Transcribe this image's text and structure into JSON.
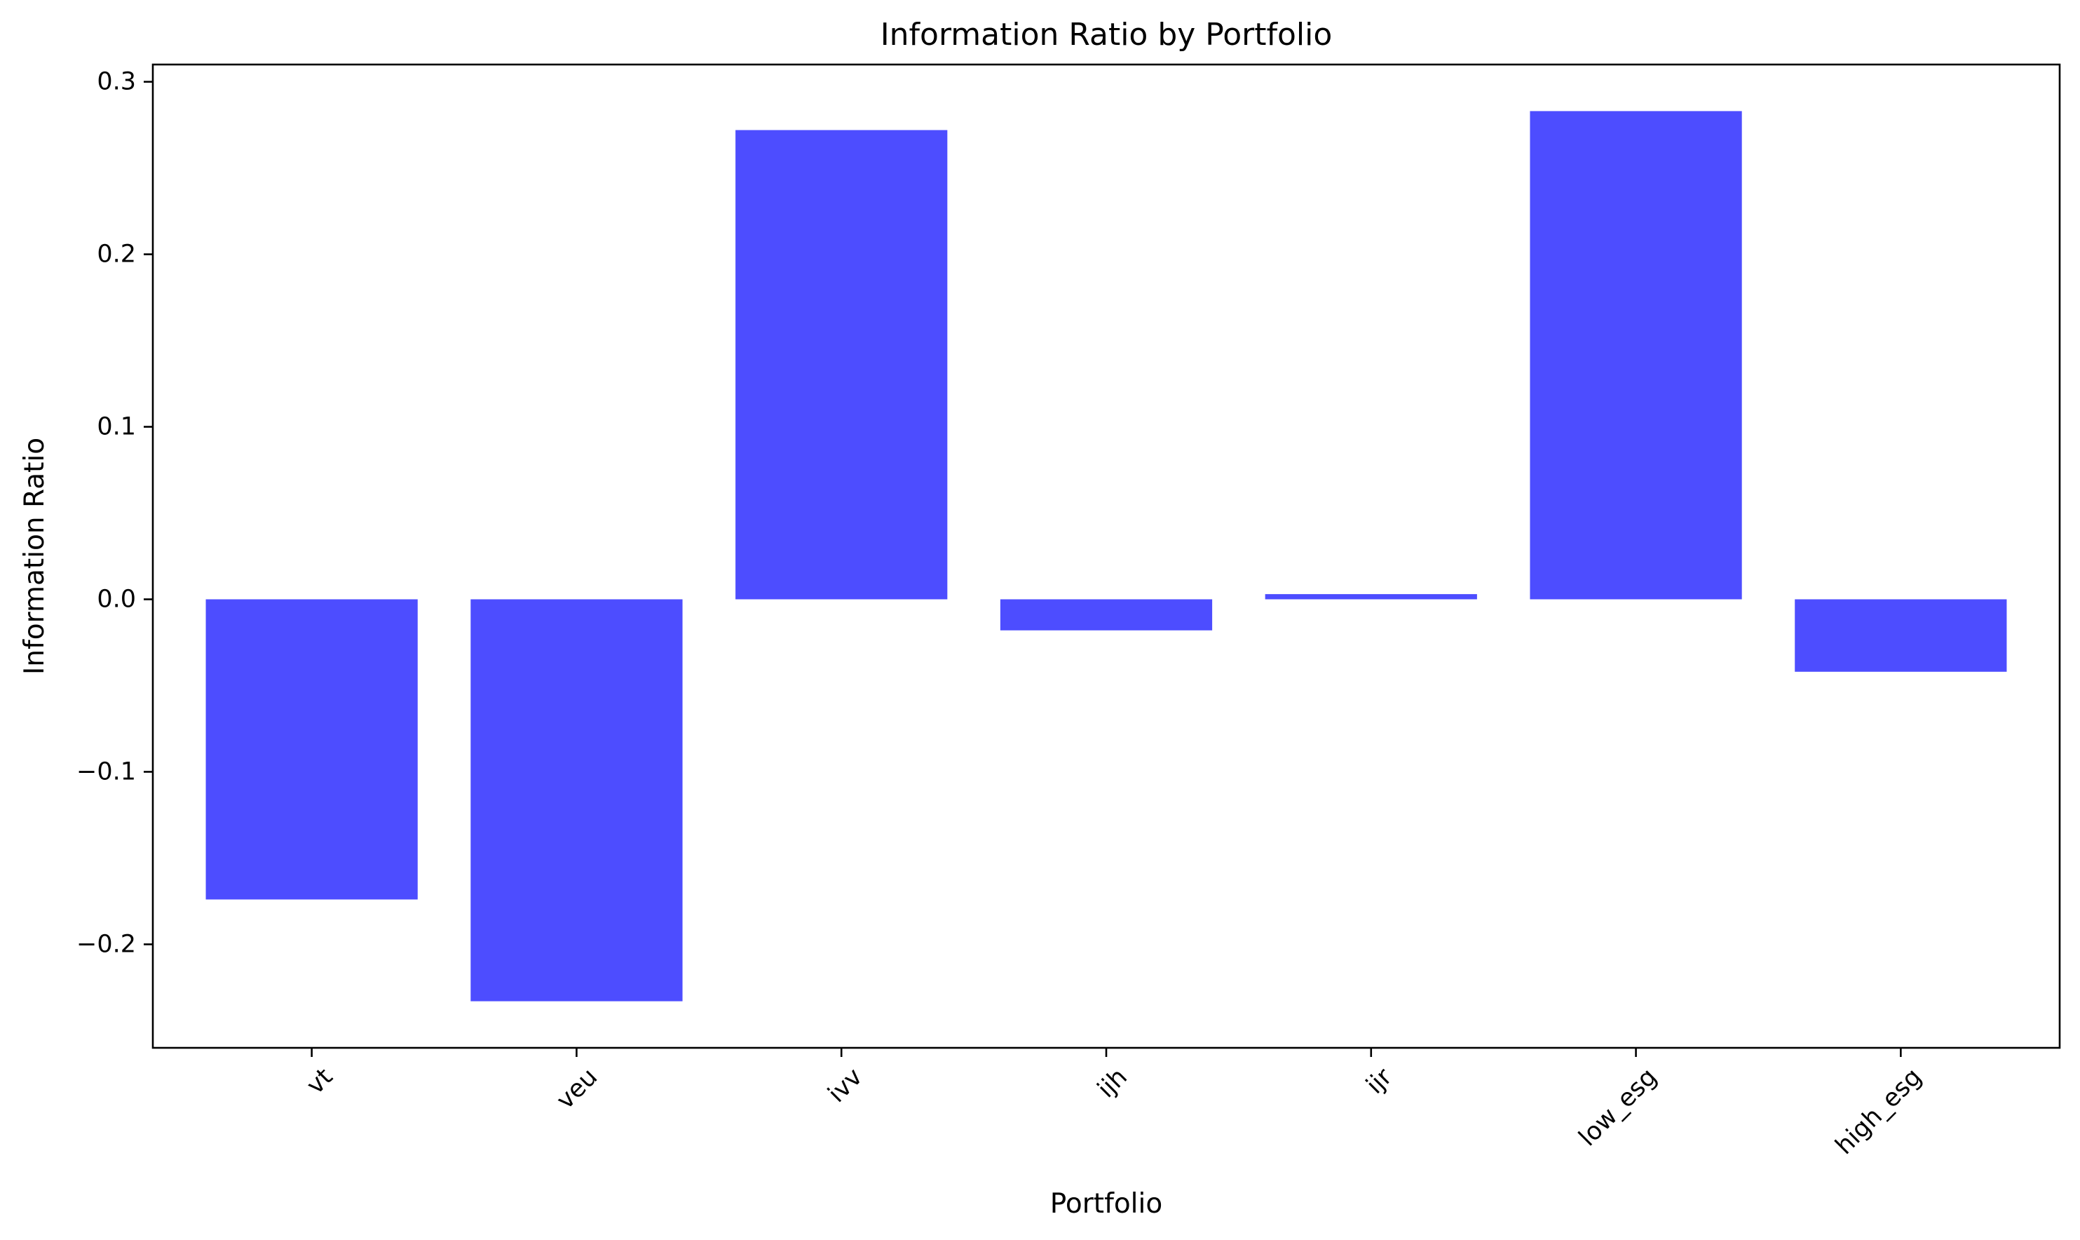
{
  "chart_data": {
    "type": "bar",
    "title": "Information Ratio by Portfolio",
    "xlabel": "Portfolio",
    "ylabel": "Information Ratio",
    "categories": [
      "vt",
      "veu",
      "ivv",
      "ijh",
      "ijr",
      "low_esg",
      "high_esg"
    ],
    "values": [
      -0.174,
      -0.233,
      0.272,
      -0.018,
      0.003,
      0.283,
      -0.042
    ],
    "ylim": [
      -0.26,
      0.31
    ],
    "yticks": [
      -0.2,
      -0.1,
      0.0,
      0.1,
      0.2,
      0.3
    ],
    "ytick_labels": [
      "−0.2",
      "−0.1",
      "0.0",
      "0.1",
      "0.2",
      "0.3"
    ],
    "bar_color": "#4d4dff",
    "grid": false,
    "legend": "none",
    "xtick_rotation_deg": 45
  }
}
